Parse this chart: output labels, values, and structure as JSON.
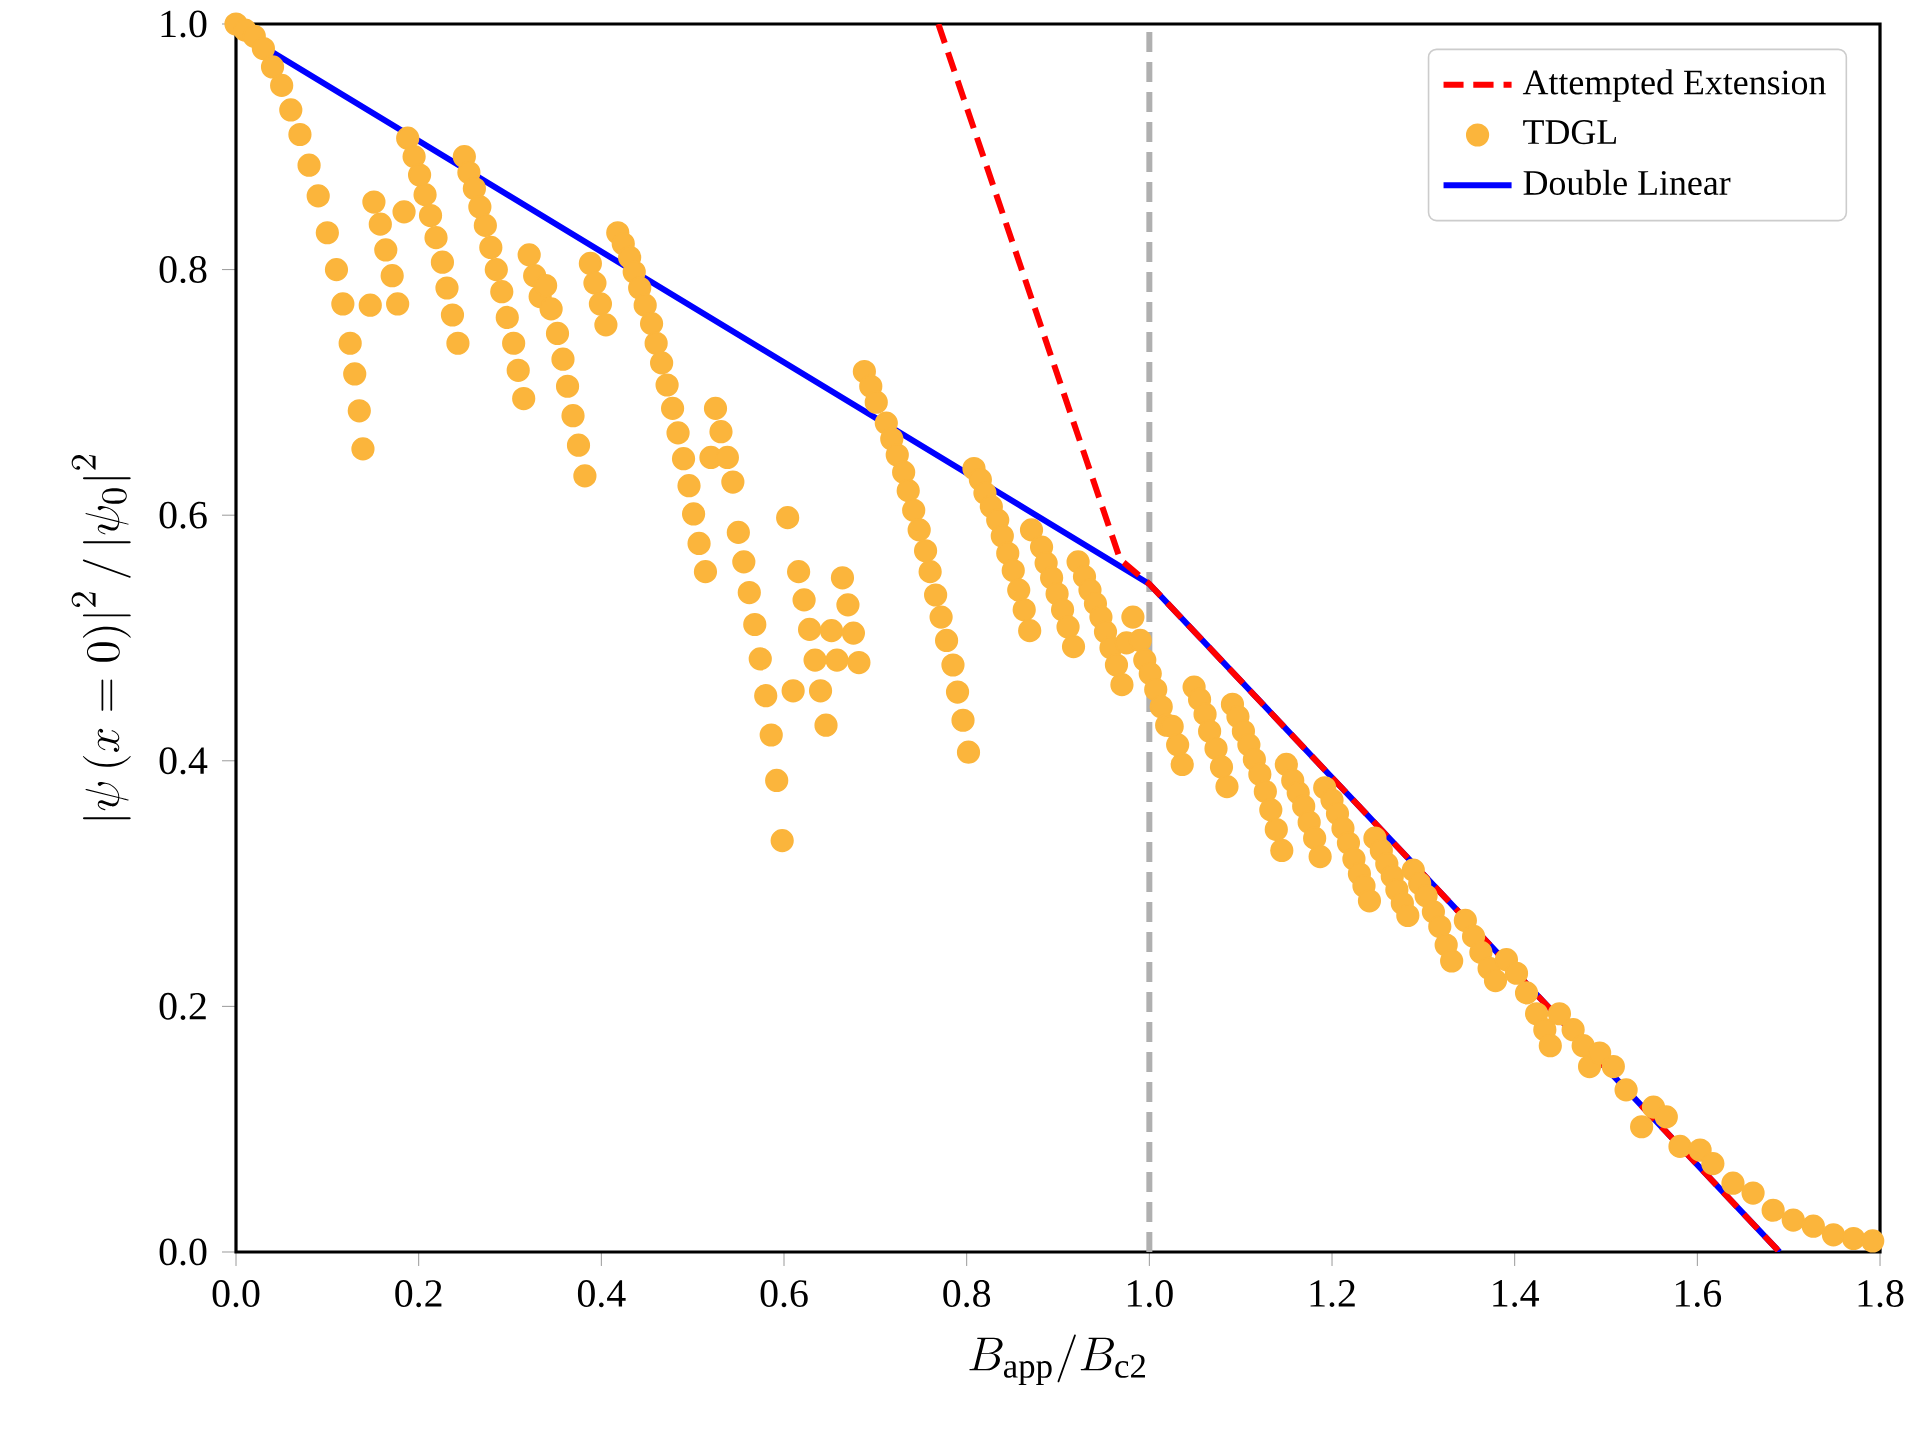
{
  "chart_data": {
    "type": "scatter",
    "xlabel": "B_{\\mathrm{app}}/B_{\\mathrm{c2}}",
    "ylabel": "\\left|\\psi\\left(x=0\\right)\\right|^2/\\left|\\psi_0\\right|^2",
    "xlim": [
      0,
      1.8
    ],
    "ylim": [
      0,
      1
    ],
    "xticks": [
      {
        "value": 0,
        "label": "0.0"
      },
      {
        "value": 0.2,
        "label": "0.2"
      },
      {
        "value": 0.4,
        "label": "0.4"
      },
      {
        "value": 0.6,
        "label": "0.6"
      },
      {
        "value": 0.8,
        "label": "0.8"
      },
      {
        "value": 1.0,
        "label": "1.0"
      },
      {
        "value": 1.2,
        "label": "1.2"
      },
      {
        "value": 1.4,
        "label": "1.4"
      },
      {
        "value": 1.6,
        "label": "1.6"
      },
      {
        "value": 1.8,
        "label": "1.8"
      }
    ],
    "yticks": [
      {
        "value": 0,
        "label": "0.0"
      },
      {
        "value": 0.2,
        "label": "0.2"
      },
      {
        "value": 0.4,
        "label": "0.4"
      },
      {
        "value": 0.6,
        "label": "0.6"
      },
      {
        "value": 0.8,
        "label": "0.8"
      },
      {
        "value": 1.0,
        "label": "1.0"
      }
    ],
    "legend": "top right",
    "ref_lines": [
      {
        "axis": "x",
        "value": 1.0,
        "color": "#b0b0b0",
        "line_style": "dashed"
      }
    ],
    "series": [
      {
        "name": "Attempted Extension",
        "type": "line",
        "color": "#ff0000",
        "line_style": "dashed",
        "marker": "none",
        "x": [
          0.769,
          0.968,
          1.0,
          1.69
        ],
        "values": [
          1.0,
          0.564,
          0.544,
          0.0
        ]
      },
      {
        "name": "TDGL",
        "color": "#fbb53c",
        "marker": "circle",
        "x": [
          0.0,
          0.01,
          0.02,
          0.03,
          0.04,
          0.05,
          0.06,
          0.07,
          0.08,
          0.09,
          0.1,
          0.11,
          0.117,
          0.125,
          0.13,
          0.135,
          0.139,
          0.147,
          0.151,
          0.158,
          0.164,
          0.171,
          0.177,
          0.184,
          0.188,
          0.195,
          0.201,
          0.207,
          0.213,
          0.219,
          0.226,
          0.231,
          0.237,
          0.243,
          0.25,
          0.255,
          0.261,
          0.267,
          0.273,
          0.279,
          0.285,
          0.291,
          0.297,
          0.304,
          0.309,
          0.315,
          0.321,
          0.327,
          0.333,
          0.339,
          0.345,
          0.352,
          0.358,
          0.363,
          0.369,
          0.375,
          0.382,
          0.388,
          0.393,
          0.399,
          0.405,
          0.418,
          0.424,
          0.431,
          0.436,
          0.442,
          0.448,
          0.455,
          0.46,
          0.466,
          0.472,
          0.478,
          0.484,
          0.49,
          0.496,
          0.501,
          0.507,
          0.514,
          0.52,
          0.525,
          0.531,
          0.538,
          0.544,
          0.55,
          0.556,
          0.562,
          0.568,
          0.574,
          0.58,
          0.586,
          0.592,
          0.598,
          0.604,
          0.61,
          0.616,
          0.622,
          0.628,
          0.634,
          0.64,
          0.646,
          0.652,
          0.658,
          0.664,
          0.67,
          0.676,
          0.682,
          0.688,
          0.695,
          0.701,
          0.712,
          0.718,
          0.724,
          0.731,
          0.736,
          0.742,
          0.748,
          0.755,
          0.76,
          0.766,
          0.772,
          0.778,
          0.785,
          0.79,
          0.796,
          0.802,
          0.808,
          0.815,
          0.82,
          0.827,
          0.834,
          0.839,
          0.845,
          0.851,
          0.857,
          0.863,
          0.869,
          0.871,
          0.882,
          0.887,
          0.893,
          0.899,
          0.905,
          0.911,
          0.917,
          0.922,
          0.929,
          0.935,
          0.941,
          0.947,
          0.952,
          0.958,
          0.964,
          0.97,
          0.975,
          0.982,
          0.99,
          0.995,
          1.001,
          1.007,
          1.013,
          1.019,
          1.025,
          1.031,
          1.036,
          1.049,
          1.055,
          1.061,
          1.066,
          1.073,
          1.079,
          1.085,
          1.091,
          1.097,
          1.103,
          1.109,
          1.115,
          1.121,
          1.127,
          1.133,
          1.139,
          1.145,
          1.15,
          1.157,
          1.163,
          1.169,
          1.175,
          1.181,
          1.187,
          1.192,
          1.2,
          1.206,
          1.212,
          1.218,
          1.224,
          1.23,
          1.235,
          1.241,
          1.247,
          1.254,
          1.26,
          1.266,
          1.271,
          1.277,
          1.283,
          1.289,
          1.296,
          1.303,
          1.311,
          1.318,
          1.325,
          1.331,
          1.346,
          1.355,
          1.363,
          1.372,
          1.379,
          1.391,
          1.402,
          1.413,
          1.424,
          1.433,
          1.439,
          1.449,
          1.464,
          1.475,
          1.482,
          1.493,
          1.508,
          1.522,
          1.539,
          1.552,
          1.566,
          1.581,
          1.603,
          1.617,
          1.639,
          1.661,
          1.683,
          1.705,
          1.727,
          1.749,
          1.771,
          1.792
        ],
        "values": [
          1.0,
          0.995,
          0.99,
          0.98,
          0.965,
          0.95,
          0.93,
          0.91,
          0.885,
          0.86,
          0.83,
          0.8,
          0.772,
          0.74,
          0.715,
          0.685,
          0.654,
          0.771,
          0.855,
          0.837,
          0.816,
          0.795,
          0.772,
          0.847,
          0.907,
          0.892,
          0.877,
          0.861,
          0.844,
          0.826,
          0.806,
          0.785,
          0.763,
          0.74,
          0.892,
          0.879,
          0.866,
          0.851,
          0.836,
          0.818,
          0.8,
          0.782,
          0.761,
          0.74,
          0.718,
          0.695,
          0.812,
          0.795,
          0.778,
          0.787,
          0.768,
          0.748,
          0.727,
          0.705,
          0.681,
          0.657,
          0.632,
          0.805,
          0.789,
          0.772,
          0.755,
          0.83,
          0.821,
          0.81,
          0.798,
          0.785,
          0.771,
          0.756,
          0.74,
          0.724,
          0.706,
          0.687,
          0.667,
          0.646,
          0.624,
          0.601,
          0.577,
          0.554,
          0.647,
          0.687,
          0.668,
          0.647,
          0.627,
          0.586,
          0.562,
          0.537,
          0.511,
          0.483,
          0.453,
          0.421,
          0.384,
          0.335,
          0.598,
          0.457,
          0.554,
          0.531,
          0.507,
          0.482,
          0.457,
          0.429,
          0.506,
          0.482,
          0.549,
          0.527,
          0.504,
          0.48,
          0.717,
          0.705,
          0.692,
          0.675,
          0.662,
          0.649,
          0.635,
          0.62,
          0.604,
          0.588,
          0.571,
          0.554,
          0.535,
          0.517,
          0.498,
          0.478,
          0.456,
          0.433,
          0.407,
          0.638,
          0.629,
          0.618,
          0.607,
          0.596,
          0.583,
          0.569,
          0.555,
          0.539,
          0.523,
          0.506,
          0.588,
          0.574,
          0.561,
          0.549,
          0.536,
          0.523,
          0.509,
          0.493,
          0.562,
          0.55,
          0.539,
          0.528,
          0.517,
          0.505,
          0.492,
          0.478,
          0.462,
          0.496,
          0.517,
          0.498,
          0.482,
          0.471,
          0.458,
          0.444,
          0.429,
          0.428,
          0.413,
          0.397,
          0.46,
          0.45,
          0.438,
          0.424,
          0.41,
          0.395,
          0.379,
          0.446,
          0.436,
          0.424,
          0.413,
          0.401,
          0.389,
          0.375,
          0.36,
          0.344,
          0.327,
          0.397,
          0.384,
          0.374,
          0.363,
          0.35,
          0.337,
          0.322,
          0.378,
          0.368,
          0.357,
          0.345,
          0.333,
          0.32,
          0.308,
          0.298,
          0.286,
          0.337,
          0.327,
          0.316,
          0.306,
          0.295,
          0.284,
          0.274,
          0.311,
          0.3,
          0.29,
          0.277,
          0.265,
          0.25,
          0.237,
          0.27,
          0.257,
          0.244,
          0.231,
          0.221,
          0.238,
          0.227,
          0.211,
          0.194,
          0.181,
          0.168,
          0.194,
          0.181,
          0.168,
          0.151,
          0.162,
          0.151,
          0.132,
          0.102,
          0.118,
          0.11,
          0.086,
          0.083,
          0.072,
          0.056,
          0.048,
          0.034,
          0.026,
          0.021,
          0.014,
          0.011,
          0.009
        ]
      },
      {
        "name": "Double Linear",
        "type": "line",
        "color": "#0000ff",
        "line_style": "solid",
        "marker": "none",
        "x": [
          0.0,
          1.0,
          1.69
        ],
        "values": [
          0.995,
          0.544,
          0.0
        ]
      }
    ]
  }
}
